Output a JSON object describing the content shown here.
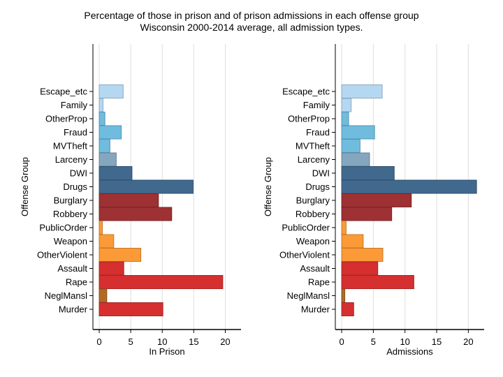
{
  "title": "Percentage of those in prison and of prison admissions in each offense group",
  "subtitle": "Wisconsin 2000-2014 average, all admission types.",
  "chart_data": [
    {
      "type": "bar",
      "orientation": "horizontal",
      "ylabel": "Offense Group",
      "xlabel": "In Prison",
      "xlim": [
        -1,
        22.5
      ],
      "xticks": [
        0,
        5,
        10,
        15,
        20
      ],
      "grid": true,
      "categories": [
        "Escape_etc",
        "Family",
        "OtherProp",
        "Fraud",
        "MVTheft",
        "Larceny",
        "DWI",
        "Drugs",
        "Burglary",
        "Robbery",
        "PublicOrder",
        "Weapon",
        "OtherViolent",
        "Assault",
        "Rape",
        "NeglMansl",
        "Murder"
      ],
      "values": [
        3.8,
        0.6,
        0.9,
        3.5,
        1.7,
        2.7,
        5.2,
        14.9,
        9.4,
        11.5,
        0.5,
        2.3,
        6.6,
        3.9,
        19.6,
        1.2,
        10.1
      ],
      "colors": [
        "#b5d8f2",
        "#b5d8f2",
        "#6fbcdf",
        "#6fbcdf",
        "#6fbcdf",
        "#85a6bf",
        "#41698e",
        "#41698e",
        "#9e3133",
        "#9e3133",
        "#fb9a36",
        "#fb9a36",
        "#fb9a36",
        "#d62f2f",
        "#d62f2f",
        "#b06a26",
        "#d62f2f"
      ]
    },
    {
      "type": "bar",
      "orientation": "horizontal",
      "ylabel": "Offense Group",
      "xlabel": "Admissions",
      "xlim": [
        -1,
        22.5
      ],
      "xticks": [
        0,
        5,
        10,
        15,
        20
      ],
      "grid": true,
      "categories": [
        "Escape_etc",
        "Family",
        "OtherProp",
        "Fraud",
        "MVTheft",
        "Larceny",
        "DWI",
        "Drugs",
        "Burglary",
        "Robbery",
        "PublicOrder",
        "Weapon",
        "OtherViolent",
        "Assault",
        "Rape",
        "NeglMansl",
        "Murder"
      ],
      "values": [
        6.4,
        1.5,
        1.1,
        5.2,
        2.9,
        4.4,
        8.3,
        21.3,
        11.0,
        7.9,
        0.7,
        3.4,
        6.5,
        5.7,
        11.4,
        0.5,
        1.9
      ],
      "colors": [
        "#b5d8f2",
        "#b5d8f2",
        "#6fbcdf",
        "#6fbcdf",
        "#6fbcdf",
        "#85a6bf",
        "#41698e",
        "#41698e",
        "#9e3133",
        "#9e3133",
        "#fb9a36",
        "#fb9a36",
        "#fb9a36",
        "#d62f2f",
        "#d62f2f",
        "#b06a26",
        "#d62f2f"
      ]
    }
  ]
}
